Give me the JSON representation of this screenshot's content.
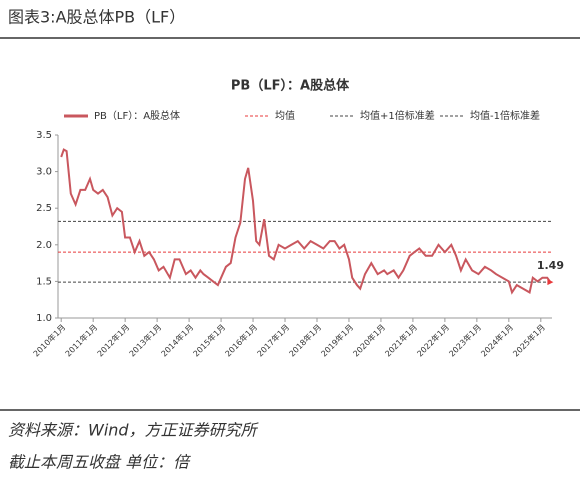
{
  "header": {
    "title": "图表3:A股总体PB（LF）"
  },
  "chart_data": {
    "type": "line",
    "title": "PB（LF）：A股总体",
    "x": [
      2010.0,
      2010.08,
      2010.17,
      2010.3,
      2010.45,
      2010.6,
      2010.75,
      2010.9,
      2011.0,
      2011.15,
      2011.3,
      2011.45,
      2011.6,
      2011.75,
      2011.9,
      2012.0,
      2012.15,
      2012.3,
      2012.45,
      2012.6,
      2012.75,
      2012.9,
      2013.05,
      2013.2,
      2013.4,
      2013.55,
      2013.7,
      2013.9,
      2014.05,
      2014.2,
      2014.35,
      2014.45,
      2014.6,
      2014.75,
      2014.9,
      2015.0,
      2015.15,
      2015.3,
      2015.45,
      2015.6,
      2015.75,
      2015.85,
      2016.0,
      2016.1,
      2016.2,
      2016.35,
      2016.5,
      2016.65,
      2016.8,
      2017.0,
      2017.2,
      2017.4,
      2017.6,
      2017.8,
      2018.0,
      2018.2,
      2018.4,
      2018.55,
      2018.7,
      2018.85,
      2019.0,
      2019.1,
      2019.25,
      2019.35,
      2019.5,
      2019.7,
      2019.9,
      2020.1,
      2020.2,
      2020.4,
      2020.55,
      2020.7,
      2020.9,
      2021.05,
      2021.2,
      2021.4,
      2021.6,
      2021.8,
      2022.0,
      2022.2,
      2022.35,
      2022.5,
      2022.65,
      2022.85,
      2023.05,
      2023.25,
      2023.45,
      2023.6,
      2023.8,
      2024.0,
      2024.1,
      2024.25,
      2024.45,
      2024.65,
      2024.75,
      2024.9,
      2025.05,
      2025.2,
      2025.3
    ],
    "xlim": [
      2009.9,
      2025.35
    ],
    "xticks": [
      {
        "value": 2010,
        "label": "2010年1月"
      },
      {
        "value": 2011,
        "label": "2011年1月"
      },
      {
        "value": 2012,
        "label": "2012年1月"
      },
      {
        "value": 2013,
        "label": "2013年1月"
      },
      {
        "value": 2014,
        "label": "2014年1月"
      },
      {
        "value": 2015,
        "label": "2015年1月"
      },
      {
        "value": 2016,
        "label": "2016年1月"
      },
      {
        "value": 2017,
        "label": "2017年1月"
      },
      {
        "value": 2018,
        "label": "2018年1月"
      },
      {
        "value": 2019,
        "label": "2019年1月"
      },
      {
        "value": 2020,
        "label": "2020年1月"
      },
      {
        "value": 2021,
        "label": "2021年1月"
      },
      {
        "value": 2022,
        "label": "2022年1月"
      },
      {
        "value": 2023,
        "label": "2023年1月"
      },
      {
        "value": 2024,
        "label": "2024年1月"
      },
      {
        "value": 2025,
        "label": "2025年1月"
      }
    ],
    "ylim": [
      1,
      3.5
    ],
    "yticks": [
      {
        "value": 1,
        "label": "1.0"
      },
      1.5,
      {
        "value": 2,
        "label": "2.0"
      },
      2.5,
      {
        "value": 3,
        "label": "3.0"
      },
      3.5
    ],
    "series": [
      {
        "name": "PB（LF）：A股总体",
        "color": "#c9575e",
        "values": [
          3.2,
          3.3,
          3.28,
          2.7,
          2.55,
          2.75,
          2.75,
          2.9,
          2.75,
          2.7,
          2.75,
          2.65,
          2.4,
          2.5,
          2.45,
          2.1,
          2.1,
          1.9,
          2.05,
          1.85,
          1.9,
          1.8,
          1.65,
          1.7,
          1.55,
          1.8,
          1.8,
          1.6,
          1.65,
          1.55,
          1.65,
          1.6,
          1.55,
          1.5,
          1.45,
          1.55,
          1.7,
          1.75,
          2.1,
          2.3,
          2.9,
          3.05,
          2.6,
          2.05,
          2.0,
          2.35,
          1.85,
          1.8,
          2.0,
          1.95,
          2.0,
          2.05,
          1.95,
          2.05,
          2.0,
          1.95,
          2.05,
          2.05,
          1.95,
          2.0,
          1.8,
          1.55,
          1.45,
          1.4,
          1.6,
          1.75,
          1.6,
          1.65,
          1.6,
          1.65,
          1.55,
          1.65,
          1.85,
          1.9,
          1.95,
          1.85,
          1.85,
          2.0,
          1.9,
          2.0,
          1.85,
          1.65,
          1.8,
          1.65,
          1.6,
          1.7,
          1.65,
          1.6,
          1.55,
          1.5,
          1.35,
          1.45,
          1.4,
          1.35,
          1.55,
          1.5,
          1.55,
          1.55,
          1.49
        ]
      }
    ],
    "reference_lines": [
      {
        "name": "均值",
        "value": 1.9,
        "color": "#e8393b"
      },
      {
        "name": "均值+1倍标准差",
        "value": 2.32,
        "color": "#444444"
      },
      {
        "name": "均值-1倍标准差",
        "value": 1.49,
        "color": "#444444"
      }
    ],
    "last_marker_color": "#e8393b"
  },
  "footer": {
    "source": "资料来源：Wind，方正证券研究所",
    "note": "截止本周五收盘 单位：倍"
  }
}
